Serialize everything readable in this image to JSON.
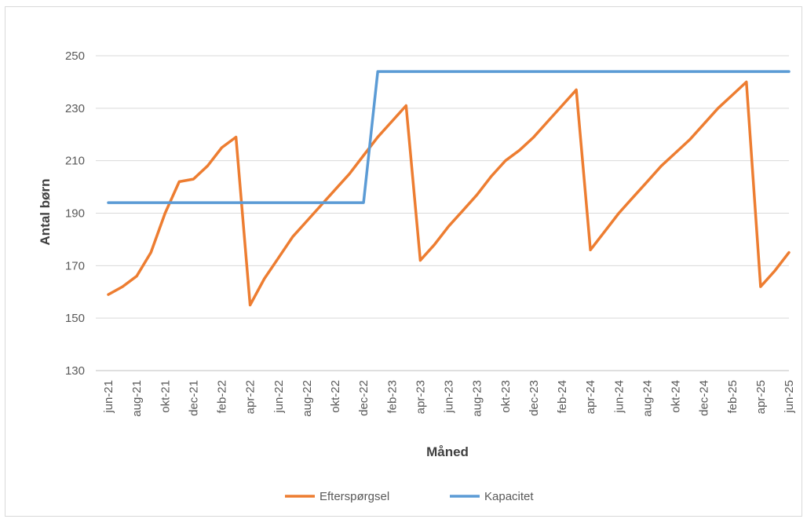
{
  "chart_data": {
    "type": "line",
    "xlabel": "Måned",
    "ylabel": "Antal børn",
    "ylim": [
      130,
      250
    ],
    "yticks": [
      130,
      150,
      170,
      190,
      210,
      230,
      250
    ],
    "grid": "horizontal",
    "legend_position": "bottom",
    "x_tick_labels": [
      "jun-21",
      "aug-21",
      "okt-21",
      "dec-21",
      "feb-22",
      "apr-22",
      "jun-22",
      "aug-22",
      "okt-22",
      "dec-22",
      "feb-23",
      "apr-23",
      "jun-23",
      "aug-23",
      "okt-23",
      "dec-23",
      "feb-24",
      "apr-24",
      "jun-24",
      "aug-24",
      "okt-24",
      "dec-24",
      "feb-25",
      "apr-25",
      "jun-25"
    ],
    "x": [
      "jun-21",
      "jul-21",
      "aug-21",
      "sep-21",
      "okt-21",
      "nov-21",
      "dec-21",
      "jan-22",
      "feb-22",
      "mar-22",
      "apr-22",
      "maj-22",
      "jun-22",
      "jul-22",
      "aug-22",
      "sep-22",
      "okt-22",
      "nov-22",
      "dec-22",
      "jan-23",
      "feb-23",
      "mar-23",
      "apr-23",
      "maj-23",
      "jun-23",
      "jul-23",
      "aug-23",
      "sep-23",
      "okt-23",
      "nov-23",
      "dec-23",
      "jan-24",
      "feb-24",
      "mar-24",
      "apr-24",
      "maj-24",
      "jun-24",
      "jul-24",
      "aug-24",
      "sep-24",
      "okt-24",
      "nov-24",
      "dec-24",
      "jan-25",
      "feb-25",
      "mar-25",
      "apr-25",
      "maj-25",
      "jun-25"
    ],
    "series": [
      {
        "name": "Efterspørgsel",
        "color": "#ed7d31",
        "values": [
          159,
          162,
          166,
          175,
          190,
          202,
          203,
          208,
          215,
          219,
          155,
          165,
          173,
          181,
          187,
          193,
          199,
          205,
          212,
          219,
          225,
          231,
          172,
          178,
          185,
          191,
          197,
          204,
          210,
          214,
          219,
          225,
          231,
          237,
          176,
          183,
          190,
          196,
          202,
          208,
          213,
          218,
          224,
          230,
          235,
          240,
          162,
          168,
          175
        ]
      },
      {
        "name": "Kapacitet",
        "color": "#5b9bd5",
        "values": [
          194,
          194,
          194,
          194,
          194,
          194,
          194,
          194,
          194,
          194,
          194,
          194,
          194,
          194,
          194,
          194,
          194,
          194,
          194,
          244,
          244,
          244,
          244,
          244,
          244,
          244,
          244,
          244,
          244,
          244,
          244,
          244,
          244,
          244,
          244,
          244,
          244,
          244,
          244,
          244,
          244,
          244,
          244,
          244,
          244,
          244,
          244,
          244,
          244
        ]
      }
    ]
  }
}
